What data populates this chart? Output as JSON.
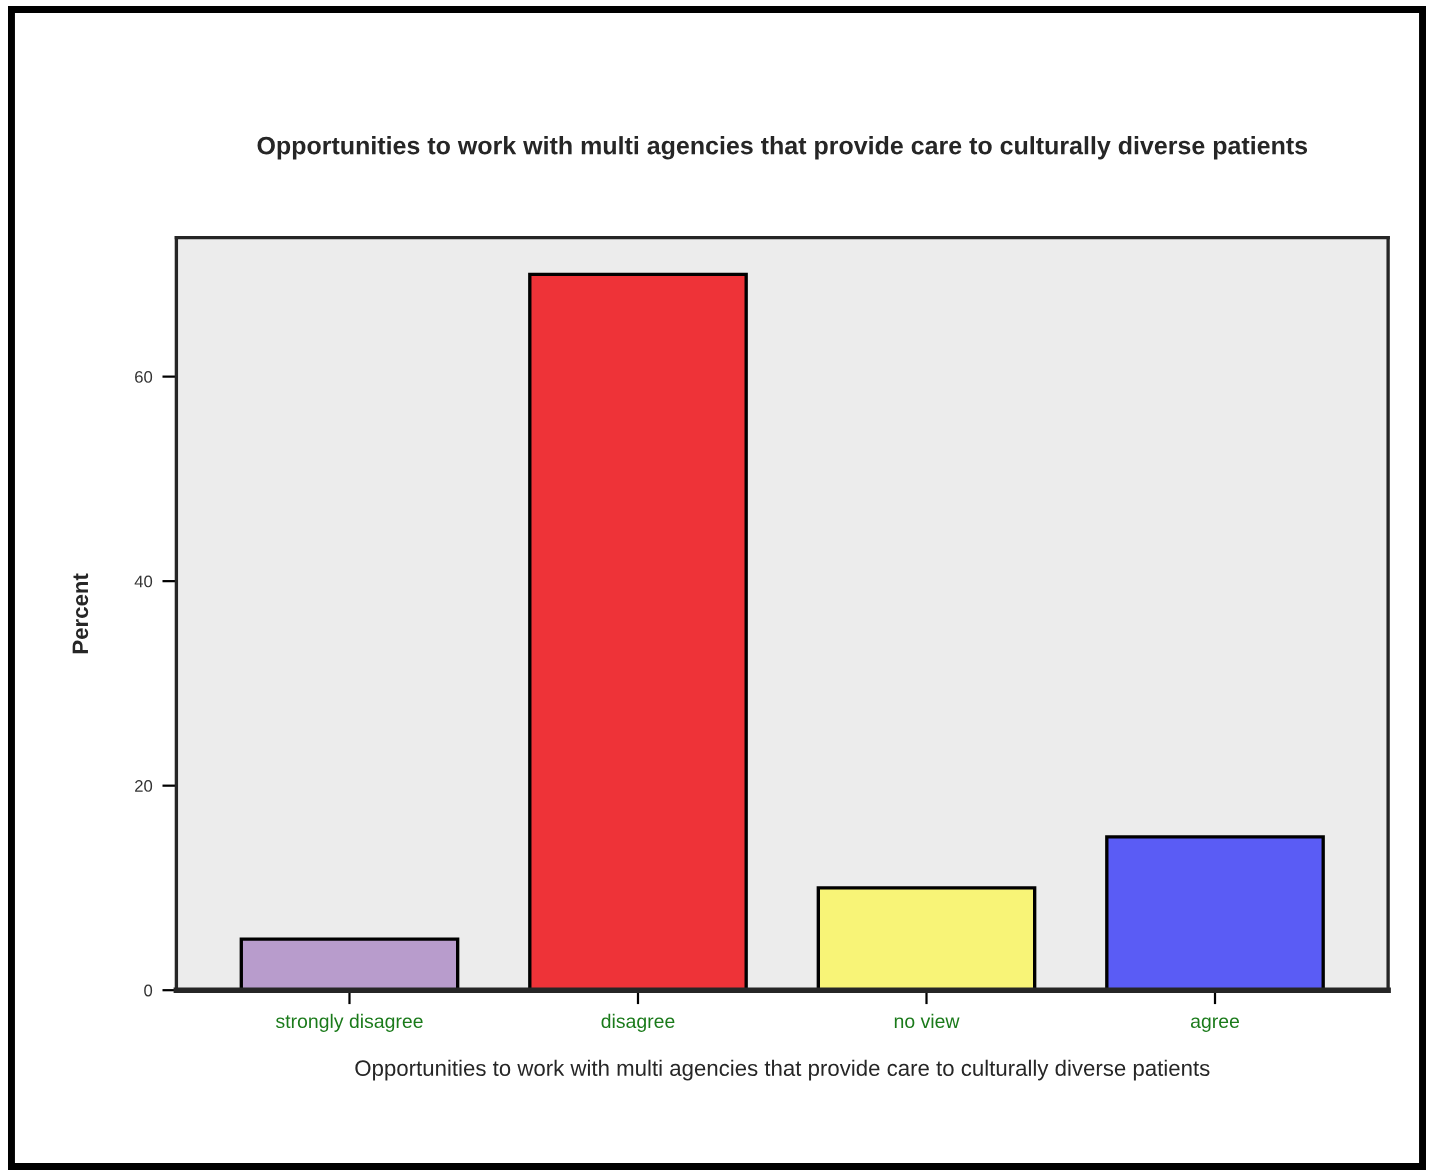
{
  "chart_data": {
    "type": "bar",
    "title": "Opportunities to work with multi agencies that provide care to culturally diverse patients",
    "xlabel": "Opportunities to work with multi agencies that provide care to culturally diverse patients",
    "ylabel": "Percent",
    "categories": [
      "strongly disagree",
      "disagree",
      "no view",
      "agree"
    ],
    "values": [
      5,
      70,
      10,
      15
    ],
    "colors": [
      "#b89ccc",
      "#ee3338",
      "#f8f477",
      "#5a5cf5"
    ],
    "ylim": [
      0,
      73.6
    ],
    "yticks": [
      0,
      20,
      40,
      60
    ],
    "grid": false,
    "legend": false
  }
}
